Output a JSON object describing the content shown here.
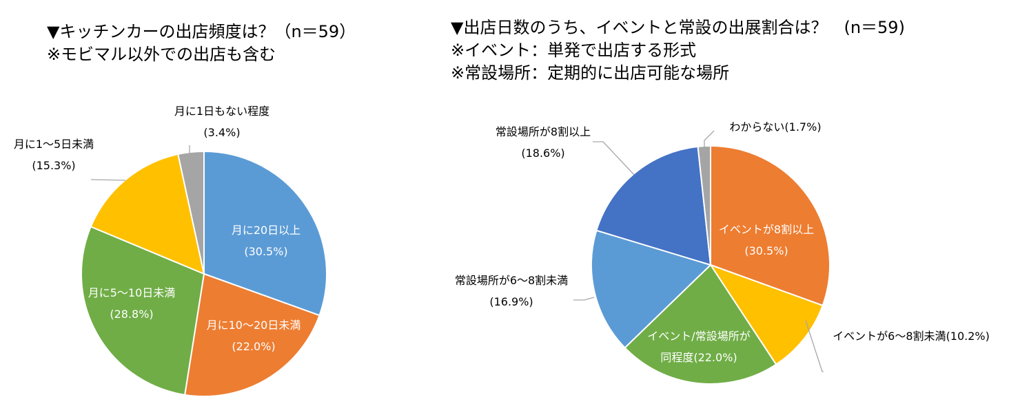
{
  "chart_data": [
    {
      "type": "pie",
      "title": "▼キッチンカーの出店頻度は？（n＝59）",
      "subtitle": "※モビマル以外での出店も含む",
      "slices": [
        {
          "label": "月に20日以上",
          "pct_label": "(30.5%)",
          "value": 30.5,
          "color": "#5b9bd5"
        },
        {
          "label": "月に10～20日未満",
          "pct_label": "(22.0%)",
          "value": 22.0,
          "color": "#ed7d31"
        },
        {
          "label": "月に5～10日未満",
          "pct_label": "(28.8%)",
          "value": 28.8,
          "color": "#70ad47"
        },
        {
          "label": "月に1～5日未満",
          "pct_label": "(15.3%)",
          "value": 15.3,
          "color": "#ffc000"
        },
        {
          "label": "月に1日もない程度",
          "pct_label": "(3.4%)",
          "value": 3.4,
          "color": "#a5a5a5"
        }
      ]
    },
    {
      "type": "pie",
      "title": "▼出店日数のうち、イベントと常設の出展割合は？　(n＝59)",
      "subtitle": [
        "※イベント：単発で出店する形式",
        "※常設場所：定期的に出店可能な場所"
      ],
      "slices": [
        {
          "label": "イベントが8割以上",
          "pct_label": "(30.5%)",
          "value": 30.5,
          "color": "#ed7d31"
        },
        {
          "label": "イベントが6～8割未満(10.2%)",
          "value": 10.2,
          "color": "#ffc000"
        },
        {
          "label": "イベント/常設場所が",
          "label2": "同程度(22.0%)",
          "value": 22.0,
          "color": "#70ad47"
        },
        {
          "label": "常設場所が6～8割未満",
          "pct_label": "(16.9%)",
          "value": 16.9,
          "color": "#5b9bd5"
        },
        {
          "label": "常設場所が8割以上",
          "pct_label": "(18.6%)",
          "value": 18.6,
          "color": "#4472c4"
        },
        {
          "label": "わからない(1.7%)",
          "value": 1.7,
          "color": "#a5a5a5"
        }
      ]
    }
  ]
}
